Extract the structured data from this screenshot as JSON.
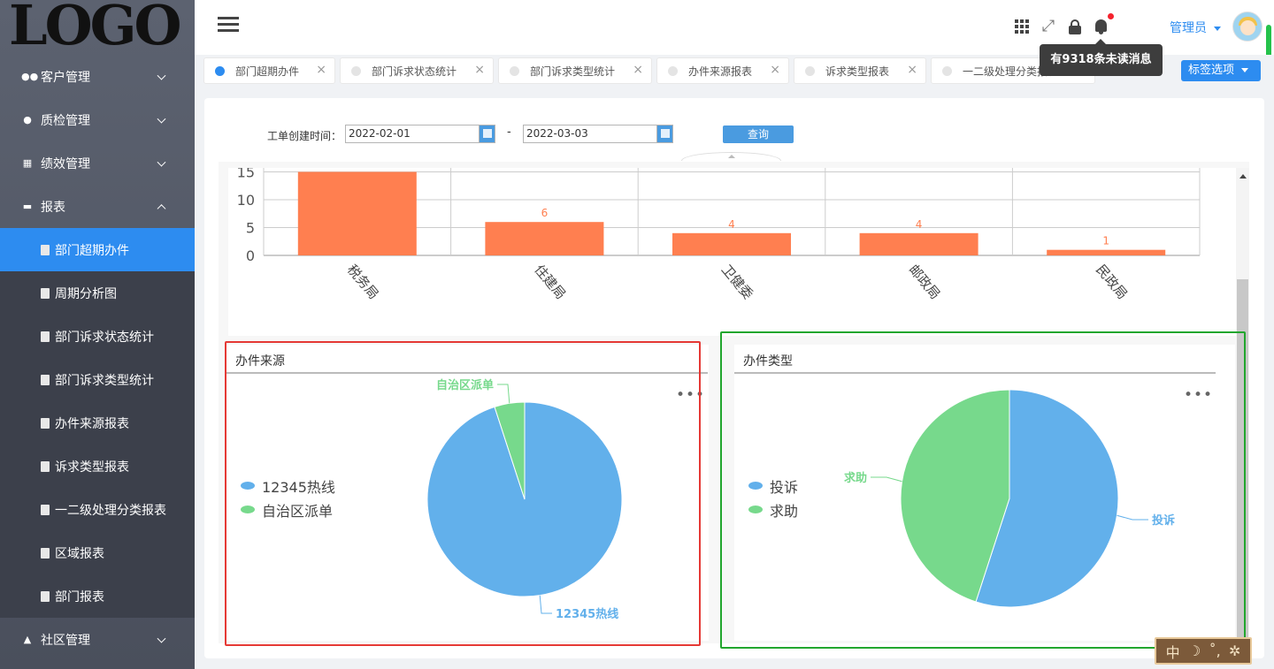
{
  "logo_text": "LOGO",
  "sidebar": {
    "menu": [
      {
        "label": "客户管理",
        "icon": "customers-icon",
        "state": "collapsed"
      },
      {
        "label": "质检管理",
        "icon": "quality-check-icon",
        "state": "collapsed"
      },
      {
        "label": "绩效管理",
        "icon": "performance-icon",
        "state": "collapsed"
      },
      {
        "label": "报表",
        "icon": "report-folder-icon",
        "state": "expanded"
      }
    ],
    "report_items": [
      {
        "label": "部门超期办件",
        "active": true
      },
      {
        "label": "周期分析图"
      },
      {
        "label": "部门诉求状态统计"
      },
      {
        "label": "部门诉求类型统计"
      },
      {
        "label": "办件来源报表"
      },
      {
        "label": "诉求类型报表"
      },
      {
        "label": "一二级处理分类报表"
      },
      {
        "label": "区域报表"
      },
      {
        "label": "部门报表"
      }
    ],
    "bottom_menu": {
      "label": "社区管理",
      "icon": "community-icon",
      "state": "collapsed"
    }
  },
  "header": {
    "admin_label": "管理员",
    "notification_tooltip": "有9318条未读消息",
    "icons": [
      "menu-icon",
      "apps-grid-icon",
      "fullscreen-icon",
      "lock-icon",
      "bell-icon"
    ]
  },
  "tabs": [
    {
      "label": "部门超期办件",
      "active": true
    },
    {
      "label": "部门诉求状态统计"
    },
    {
      "label": "部门诉求类型统计"
    },
    {
      "label": "办件来源报表"
    },
    {
      "label": "诉求类型报表"
    },
    {
      "label": "一二级处理分类报表"
    }
  ],
  "tab_options_label": "标签选项",
  "filter": {
    "label": "工单创建时间：",
    "start_date": "2022-02-01",
    "end_date": "2022-03-03",
    "separator": "-",
    "query_label": "查询"
  },
  "colors": {
    "bar": "#ff7f50",
    "pie_blue": "#62b0eb",
    "pie_green": "#77d98c",
    "accent": "#2d8cf0",
    "highlight_red": "#e53935",
    "highlight_green": "#22a62e"
  },
  "chart_data": [
    {
      "type": "bar",
      "categories": [
        "税务局",
        "住建局",
        "卫健委",
        "邮政局",
        "民政局"
      ],
      "values": [
        15,
        6,
        4,
        4,
        1
      ],
      "data_labels": [
        "",
        "6",
        "4",
        "4",
        "1"
      ],
      "yticks": [
        "0",
        "5",
        "10",
        "15"
      ],
      "ylim": [
        0,
        15
      ],
      "grid": true,
      "title": "",
      "xlabel": "",
      "ylabel": ""
    },
    {
      "type": "pie",
      "title": "办件来源",
      "legend": [
        "12345热线",
        "自治区派单"
      ],
      "slices": [
        {
          "name": "12345热线",
          "value": 95
        },
        {
          "name": "自治区派单",
          "value": 5
        }
      ],
      "legend_position": "left"
    },
    {
      "type": "pie",
      "title": "办件类型",
      "legend": [
        "投诉",
        "求助"
      ],
      "slices": [
        {
          "name": "投诉",
          "value": 55
        },
        {
          "name": "求助",
          "value": 45
        }
      ],
      "legend_position": "left"
    }
  ],
  "corner_widget_glyphs": [
    "中",
    "☽",
    "˚,",
    "✲"
  ]
}
